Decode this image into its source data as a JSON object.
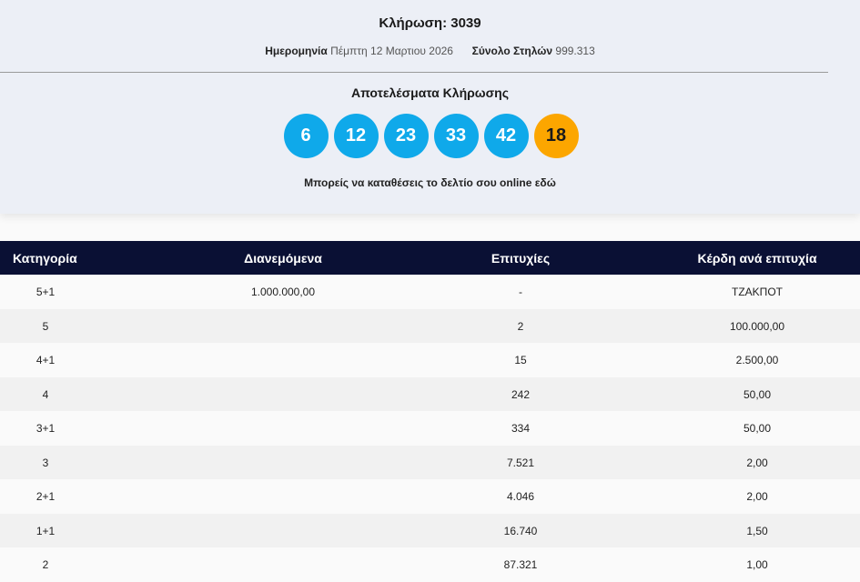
{
  "draw": {
    "title": "Κλήρωση: 3039",
    "date_label": "Ημερομηνία",
    "date_value": "Πέμπτη 12 Μαρτιου 2026",
    "columns_label": "Σύνολο Στηλών",
    "columns_value": "999.313"
  },
  "results": {
    "title": "Αποτελέσματα Κλήρωσης",
    "numbers": [
      "6",
      "12",
      "23",
      "33",
      "42"
    ],
    "bonus": "18",
    "online_text": "Μπορείς να καταθέσεις το δελτίο σου online εδώ"
  },
  "colors": {
    "ball": "#0fa9ea",
    "bonus": "#fca600",
    "header": "#0a1034"
  },
  "table": {
    "headers": [
      "Κατηγορία",
      "Διανεμόμενα",
      "Επιτυχίες",
      "Κέρδη ανά επιτυχία"
    ],
    "rows": [
      [
        "5+1",
        "1.000.000,00",
        "-",
        "ΤΖΑΚΠΟΤ"
      ],
      [
        "5",
        "",
        "2",
        "100.000,00"
      ],
      [
        "4+1",
        "",
        "15",
        "2.500,00"
      ],
      [
        "4",
        "",
        "242",
        "50,00"
      ],
      [
        "3+1",
        "",
        "334",
        "50,00"
      ],
      [
        "3",
        "",
        "7.521",
        "2,00"
      ],
      [
        "2+1",
        "",
        "4.046",
        "2,00"
      ],
      [
        "1+1",
        "",
        "16.740",
        "1,50"
      ],
      [
        "2",
        "",
        "87.321",
        "1,00"
      ]
    ]
  }
}
